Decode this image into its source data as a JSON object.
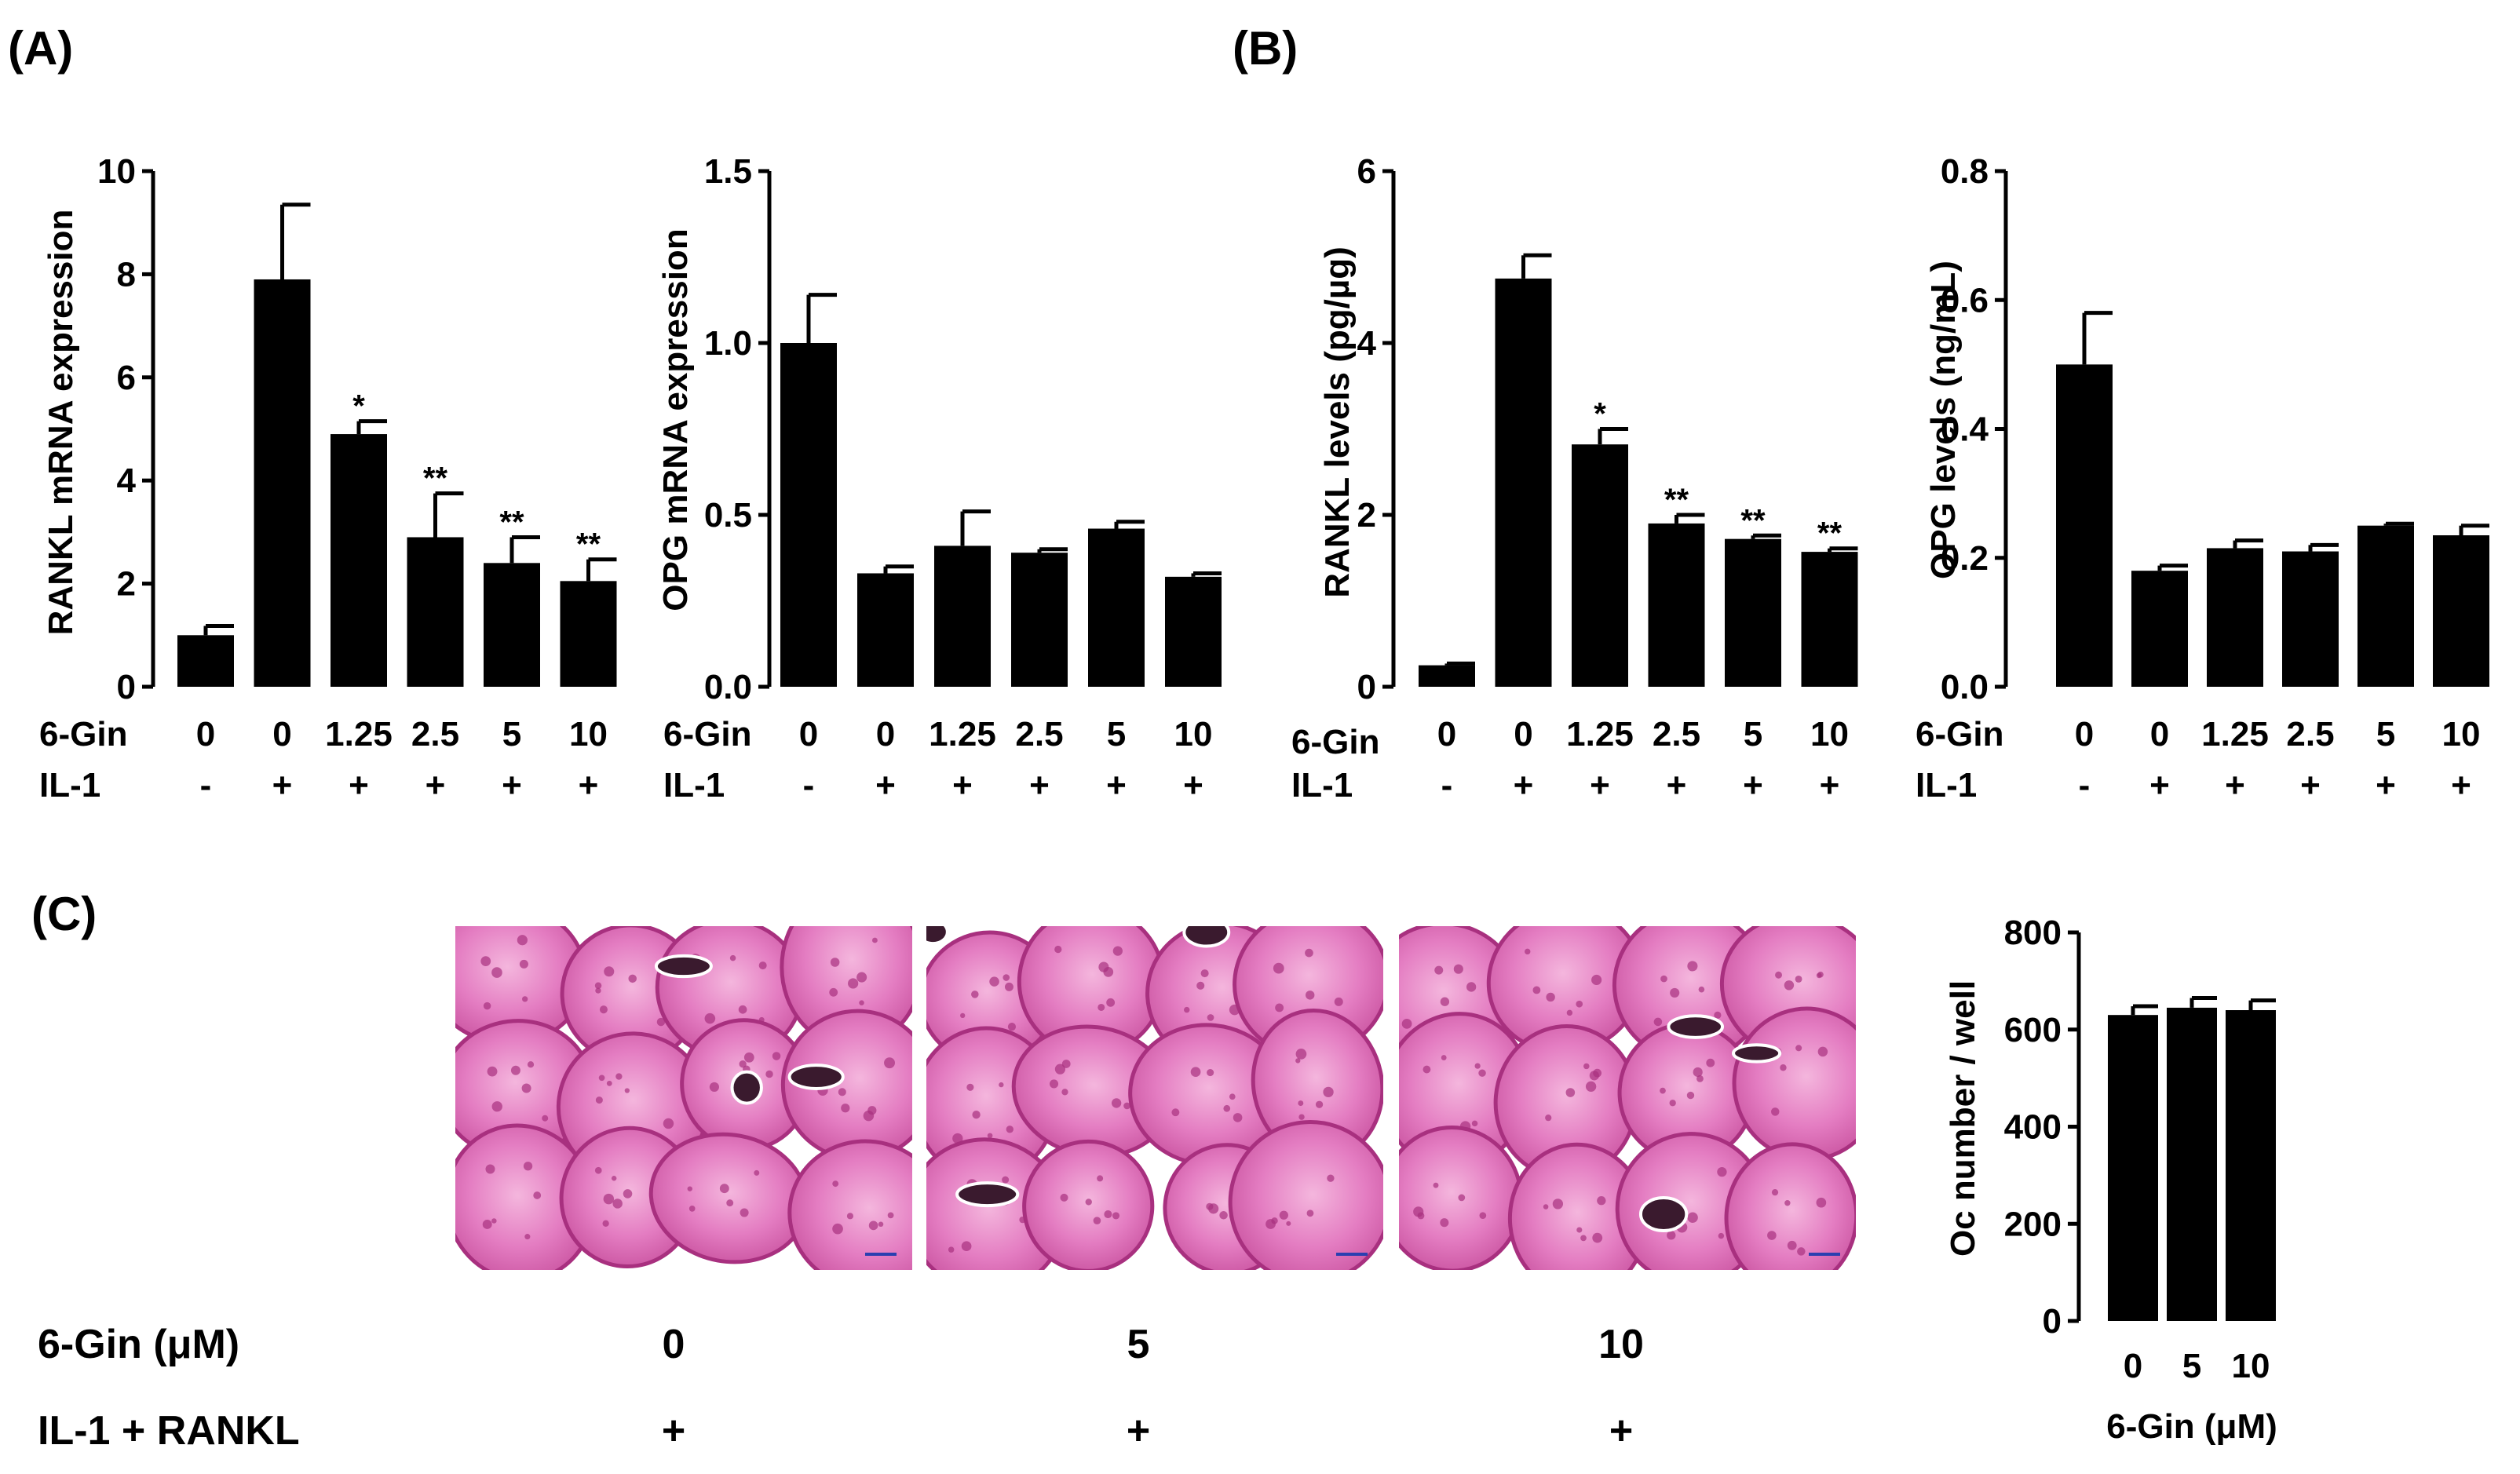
{
  "panels": [
    {
      "label": "(A)"
    },
    {
      "label": "(B)"
    },
    {
      "label": "(C)"
    }
  ],
  "colors": {
    "bar": "#000000",
    "stain_base": "#e47dc2",
    "stain_dark": "#a8307f",
    "stain_light": "#f3b7dc",
    "membrane": "#ffffff",
    "scale_bar": "#2b3fb0"
  },
  "chart_data": [
    {
      "type": "bar",
      "ylabel": "RANKL mRNA expression",
      "ylim": [
        0,
        10
      ],
      "yticks": [
        "0",
        "2",
        "4",
        "6",
        "8",
        "10"
      ],
      "categories": [
        "0",
        "0",
        "1.25",
        "2.5",
        "5",
        "10"
      ],
      "values": [
        1.0,
        7.9,
        4.9,
        2.9,
        2.4,
        2.05
      ],
      "errors": [
        0.18,
        1.45,
        0.25,
        0.85,
        0.5,
        0.42
      ],
      "significance": [
        "",
        "",
        "*",
        "**",
        "**",
        "**"
      ],
      "conditions": {
        "row1_label": "6-Gin",
        "row2_label": "IL-1",
        "row2": [
          "-",
          "+",
          "+",
          "+",
          "+",
          "+"
        ]
      }
    },
    {
      "type": "bar",
      "ylabel": "OPG mRNA expression",
      "ylim": [
        0,
        1.5
      ],
      "yticks": [
        "0.0",
        "0.5",
        "1.0",
        "1.5"
      ],
      "categories": [
        "0",
        "0",
        "1.25",
        "2.5",
        "5",
        "10"
      ],
      "values": [
        1.0,
        0.33,
        0.41,
        0.39,
        0.46,
        0.32
      ],
      "errors": [
        0.14,
        0.02,
        0.1,
        0.01,
        0.02,
        0.01
      ],
      "significance": [
        "",
        "",
        "",
        "",
        "",
        ""
      ],
      "conditions": {
        "row1_label": "6-Gin",
        "row2_label": "IL-1",
        "row2": [
          "-",
          "+",
          "+",
          "+",
          "+",
          "+"
        ]
      }
    },
    {
      "type": "bar",
      "ylabel": "RANKL levels (pg/µg)",
      "ylim": [
        0,
        6
      ],
      "yticks": [
        "0",
        "2",
        "4",
        "6"
      ],
      "categories": [
        "0",
        "0",
        "1.25",
        "2.5",
        "5",
        "10"
      ],
      "values": [
        0.25,
        4.75,
        2.82,
        1.9,
        1.72,
        1.57
      ],
      "errors": [
        0.02,
        0.27,
        0.18,
        0.1,
        0.04,
        0.04
      ],
      "significance": [
        "",
        "",
        "*",
        "**",
        "**",
        "**"
      ],
      "conditions": {
        "row1_label": "6-Gin",
        "row2_label": "IL-1",
        "row2": [
          "-",
          "+",
          "+",
          "+",
          "+",
          "+"
        ]
      }
    },
    {
      "type": "bar",
      "ylabel": "OPG levels (ng/mL)",
      "ylim": [
        0,
        0.8
      ],
      "yticks": [
        "0.0",
        "0.2",
        "0.4",
        "0.6",
        "0.8"
      ],
      "categories": [
        "0",
        "0",
        "1.25",
        "2.5",
        "5",
        "10"
      ],
      "values": [
        0.5,
        0.18,
        0.215,
        0.21,
        0.25,
        0.235
      ],
      "errors": [
        0.08,
        0.008,
        0.012,
        0.01,
        0.003,
        0.015
      ],
      "significance": [
        "",
        "",
        "",
        "",
        "",
        ""
      ],
      "conditions": {
        "row1_label": "6-Gin",
        "row2_label": "IL-1",
        "row2": [
          "-",
          "+",
          "+",
          "+",
          "+",
          "+"
        ]
      }
    },
    {
      "type": "bar",
      "ylabel": "Oc number / well",
      "xlabel": "6-Gin (μM)",
      "ylim": [
        0,
        800
      ],
      "yticks": [
        "0",
        "200",
        "400",
        "600",
        "800"
      ],
      "categories": [
        "0",
        "5",
        "10"
      ],
      "values": [
        630,
        645,
        640
      ],
      "errors": [
        18,
        20,
        20
      ],
      "significance": [
        "",
        "",
        ""
      ]
    }
  ],
  "micrographs": {
    "row1_label": "6-Gin (μM)",
    "row2_label": "IL-1 + RANKL",
    "doses": [
      "0",
      "5",
      "10"
    ],
    "treatment": [
      "+",
      "+",
      "+"
    ]
  }
}
